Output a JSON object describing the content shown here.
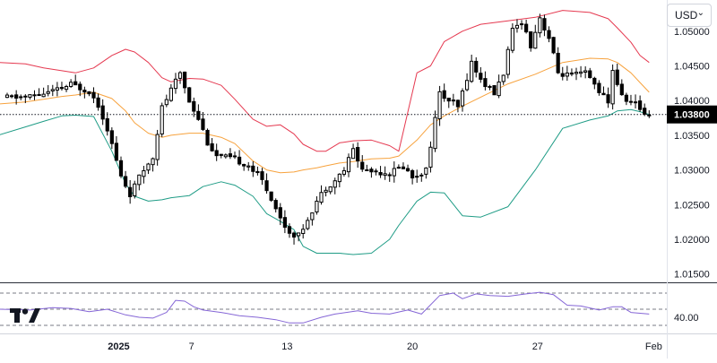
{
  "currency_selector": {
    "value": "USD"
  },
  "last_price_label": "1.03800",
  "colors": {
    "upper_band": "#e53950",
    "middle_band": "#f7a23d",
    "lower_band": "#1f9c86",
    "rsi": "#8566d6",
    "candle": "#000000",
    "last_price_bg": "#000000"
  },
  "icons": {
    "logo": "tradingview-logo",
    "dropdown": "chevron-down-icon"
  },
  "chart_data": {
    "type": "candlestick",
    "price_axis": {
      "ticks": [
        "1.05000",
        "1.04500",
        "1.04000",
        "1.03500",
        "1.03000",
        "1.02500",
        "1.02000",
        "1.01500"
      ],
      "range": [
        1.0138,
        1.0545
      ]
    },
    "time_axis": {
      "ticks": [
        "2025",
        "7",
        "13",
        "20",
        "27",
        "Feb"
      ]
    },
    "last_price": 1.038,
    "indicators": {
      "bollinger_upper": [
        [
          -2,
          1.0455
        ],
        [
          4,
          1.0453
        ],
        [
          8,
          1.0447
        ],
        [
          12,
          1.0443
        ],
        [
          15,
          1.044
        ],
        [
          19,
          1.0447
        ],
        [
          23,
          1.0465
        ],
        [
          26,
          1.0474
        ],
        [
          28,
          1.047
        ],
        [
          31,
          1.0455
        ],
        [
          34,
          1.0433
        ],
        [
          36,
          1.0427
        ],
        [
          40,
          1.0432
        ],
        [
          43,
          1.0431
        ],
        [
          47,
          1.0422
        ],
        [
          50,
          1.0402
        ],
        [
          54,
          1.0373
        ],
        [
          57,
          1.0363
        ],
        [
          60,
          1.0365
        ],
        [
          63,
          1.0352
        ],
        [
          65,
          1.0337
        ],
        [
          68,
          1.0327
        ],
        [
          70,
          1.0327
        ],
        [
          73,
          1.0339
        ],
        [
          76,
          1.0342
        ],
        [
          80,
          1.0343
        ],
        [
          84,
          1.0335
        ],
        [
          86,
          1.0327
        ],
        [
          90,
          1.044
        ],
        [
          93,
          1.045
        ],
        [
          96,
          1.0485
        ],
        [
          100,
          1.05
        ],
        [
          104,
          1.051
        ],
        [
          110,
          1.0515
        ],
        [
          116,
          1.052
        ],
        [
          122,
          1.053
        ],
        [
          128,
          1.0527
        ],
        [
          132,
          1.0518
        ],
        [
          134,
          1.0505
        ],
        [
          137,
          1.0484
        ],
        [
          139,
          1.0465
        ],
        [
          141,
          1.0455
        ]
      ],
      "bollinger_middle": [
        [
          -2,
          1.0395
        ],
        [
          4,
          1.0398
        ],
        [
          8,
          1.0402
        ],
        [
          12,
          1.0406
        ],
        [
          15,
          1.0408
        ],
        [
          19,
          1.0412
        ],
        [
          23,
          1.0403
        ],
        [
          26,
          1.0385
        ],
        [
          28,
          1.0368
        ],
        [
          31,
          1.0353
        ],
        [
          34,
          1.0347
        ],
        [
          36,
          1.035
        ],
        [
          40,
          1.0353
        ],
        [
          43,
          1.0353
        ],
        [
          47,
          1.0347
        ],
        [
          50,
          1.0338
        ],
        [
          54,
          1.0313
        ],
        [
          57,
          1.03
        ],
        [
          60,
          1.0296
        ],
        [
          63,
          1.0297
        ],
        [
          65,
          1.03
        ],
        [
          68,
          1.0303
        ],
        [
          70,
          1.0306
        ],
        [
          73,
          1.031
        ],
        [
          76,
          1.0312
        ],
        [
          80,
          1.0316
        ],
        [
          84,
          1.0317
        ],
        [
          86,
          1.032
        ],
        [
          90,
          1.0343
        ],
        [
          93,
          1.0365
        ],
        [
          96,
          1.0378
        ],
        [
          100,
          1.0392
        ],
        [
          104,
          1.0405
        ],
        [
          110,
          1.0424
        ],
        [
          116,
          1.0438
        ],
        [
          122,
          1.0455
        ],
        [
          128,
          1.0461
        ],
        [
          132,
          1.046
        ],
        [
          134,
          1.0455
        ],
        [
          137,
          1.044
        ],
        [
          139,
          1.0426
        ],
        [
          141,
          1.0412
        ]
      ],
      "bollinger_lower": [
        [
          -2,
          1.035
        ],
        [
          4,
          1.0362
        ],
        [
          8,
          1.037
        ],
        [
          12,
          1.0378
        ],
        [
          15,
          1.0379
        ],
        [
          19,
          1.0377
        ],
        [
          23,
          1.0327
        ],
        [
          26,
          1.028
        ],
        [
          28,
          1.0262
        ],
        [
          31,
          1.0255
        ],
        [
          34,
          1.0257
        ],
        [
          36,
          1.026
        ],
        [
          40,
          1.0263
        ],
        [
          43,
          1.0276
        ],
        [
          47,
          1.0283
        ],
        [
          50,
          1.0278
        ],
        [
          54,
          1.0262
        ],
        [
          57,
          1.0237
        ],
        [
          60,
          1.0226
        ],
        [
          63,
          1.0214
        ],
        [
          65,
          1.019
        ],
        [
          68,
          1.018
        ],
        [
          70,
          1.018
        ],
        [
          73,
          1.018
        ],
        [
          76,
          1.0178
        ],
        [
          80,
          1.018
        ],
        [
          84,
          1.02
        ],
        [
          86,
          1.022
        ],
        [
          90,
          1.0255
        ],
        [
          93,
          1.0268
        ],
        [
          96,
          1.0267
        ],
        [
          100,
          1.0234
        ],
        [
          104,
          1.0232
        ],
        [
          110,
          1.0247
        ],
        [
          116,
          1.03
        ],
        [
          122,
          1.036
        ],
        [
          128,
          1.0372
        ],
        [
          132,
          1.0378
        ],
        [
          134,
          1.0385
        ],
        [
          137,
          1.0387
        ],
        [
          139,
          1.0384
        ],
        [
          141,
          1.038
        ]
      ]
    },
    "candle_anchors": [
      [
        0,
        1.0404
      ],
      [
        6,
        1.0406
      ],
      [
        9,
        1.041
      ],
      [
        12,
        1.0415
      ],
      [
        15,
        1.0423
      ],
      [
        19,
        1.0414
      ],
      [
        21,
        1.0394
      ],
      [
        23,
        1.036
      ],
      [
        26,
        1.029
      ],
      [
        28,
        1.0265
      ],
      [
        31,
        1.03
      ],
      [
        33,
        1.032
      ],
      [
        35,
        1.039
      ],
      [
        37,
        1.0415
      ],
      [
        39,
        1.044
      ],
      [
        41,
        1.04
      ],
      [
        43,
        1.0375
      ],
      [
        45,
        1.034
      ],
      [
        47,
        1.032
      ],
      [
        51,
        1.0315
      ],
      [
        54,
        1.0307
      ],
      [
        57,
        1.0285
      ],
      [
        59,
        1.026
      ],
      [
        61,
        1.023
      ],
      [
        63,
        1.021
      ],
      [
        65,
        1.0205
      ],
      [
        67,
        1.023
      ],
      [
        69,
        1.0255
      ],
      [
        71,
        1.0275
      ],
      [
        73,
        1.0285
      ],
      [
        75,
        1.03
      ],
      [
        77,
        1.033
      ],
      [
        79,
        1.03
      ],
      [
        82,
        1.0298
      ],
      [
        85,
        1.0296
      ],
      [
        88,
        1.0305
      ],
      [
        90,
        1.029
      ],
      [
        93,
        1.03
      ],
      [
        96,
        1.041
      ],
      [
        98,
        1.04
      ],
      [
        100,
        1.039
      ],
      [
        103,
        1.0455
      ],
      [
        105,
        1.043
      ],
      [
        108,
        1.041
      ],
      [
        110,
        1.044
      ],
      [
        112,
        1.05
      ],
      [
        114,
        1.0515
      ],
      [
        116,
        1.048
      ],
      [
        118,
        1.052
      ],
      [
        120,
        1.049
      ],
      [
        122,
        1.044
      ],
      [
        125,
        1.0435
      ],
      [
        128,
        1.044
      ],
      [
        131,
        1.0415
      ],
      [
        133,
        1.0395
      ],
      [
        134,
        1.0445
      ],
      [
        136,
        1.0405
      ],
      [
        139,
        1.0395
      ],
      [
        141,
        1.0382
      ]
    ],
    "rsi": {
      "range": [
        20,
        80
      ],
      "ticks": [
        "40.00"
      ],
      "levels": [
        70,
        50,
        30
      ],
      "values": [
        [
          -2,
          50
        ],
        [
          5,
          49
        ],
        [
          10,
          52
        ],
        [
          14,
          51
        ],
        [
          18,
          47
        ],
        [
          22,
          50
        ],
        [
          26,
          43
        ],
        [
          29,
          40
        ],
        [
          32,
          39
        ],
        [
          35,
          46
        ],
        [
          37,
          61
        ],
        [
          39,
          60
        ],
        [
          41,
          53
        ],
        [
          43,
          49
        ],
        [
          47,
          46
        ],
        [
          51,
          42
        ],
        [
          55,
          40
        ],
        [
          59,
          37
        ],
        [
          62,
          33
        ],
        [
          65,
          33
        ],
        [
          69,
          40
        ],
        [
          72,
          44
        ],
        [
          77,
          48
        ],
        [
          80,
          45
        ],
        [
          84,
          44
        ],
        [
          88,
          49
        ],
        [
          91,
          44
        ],
        [
          95,
          67
        ],
        [
          98,
          70
        ],
        [
          100,
          63
        ],
        [
          103,
          69
        ],
        [
          106,
          67
        ],
        [
          110,
          66
        ],
        [
          114,
          69
        ],
        [
          117,
          71
        ],
        [
          120,
          68
        ],
        [
          123,
          55
        ],
        [
          126,
          54
        ],
        [
          130,
          49
        ],
        [
          133,
          53
        ],
        [
          135,
          53
        ],
        [
          137,
          46
        ],
        [
          141,
          44
        ]
      ]
    }
  }
}
